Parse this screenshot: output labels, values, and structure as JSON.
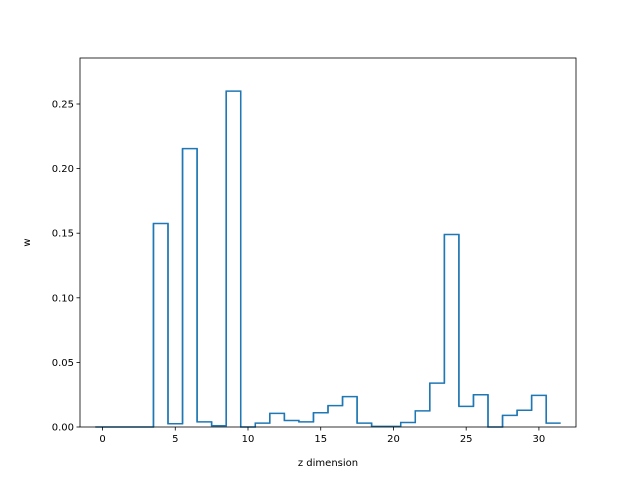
{
  "chart_data": {
    "type": "bar",
    "style": "step-histogram",
    "title": "",
    "xlabel": "z dimension",
    "ylabel": "w",
    "xlim": [
      -1.55,
      32.55
    ],
    "ylim": [
      0,
      0.2856
    ],
    "grid": false,
    "legend": "none",
    "x": [
      0,
      1,
      2,
      3,
      4,
      5,
      6,
      7,
      8,
      9,
      10,
      11,
      12,
      13,
      14,
      15,
      16,
      17,
      18,
      19,
      20,
      21,
      22,
      23,
      24,
      25,
      26,
      27,
      28,
      29,
      30,
      31
    ],
    "values": [
      0.0,
      0.0,
      0.0,
      0.0,
      0.1575,
      0.0025,
      0.2155,
      0.004,
      0.001,
      0.26,
      0.0,
      0.003,
      0.0105,
      0.005,
      0.004,
      0.011,
      0.0165,
      0.0235,
      0.003,
      0.0005,
      0.0005,
      0.0035,
      0.0125,
      0.034,
      0.149,
      0.016,
      0.025,
      0.0,
      0.009,
      0.013,
      0.0245,
      0.003
    ],
    "xticks": [
      0,
      5,
      10,
      15,
      20,
      25,
      30
    ],
    "xtick_labels": [
      "0",
      "5",
      "10",
      "15",
      "20",
      "25",
      "30"
    ],
    "yticks": [
      0.0,
      0.05,
      0.1,
      0.15,
      0.2,
      0.25
    ],
    "ytick_labels": [
      "0.00",
      "0.05",
      "0.10",
      "0.15",
      "0.20",
      "0.25"
    ],
    "colors": {
      "series": "#1f77b4",
      "axes": "#000000",
      "background": "#ffffff"
    }
  }
}
